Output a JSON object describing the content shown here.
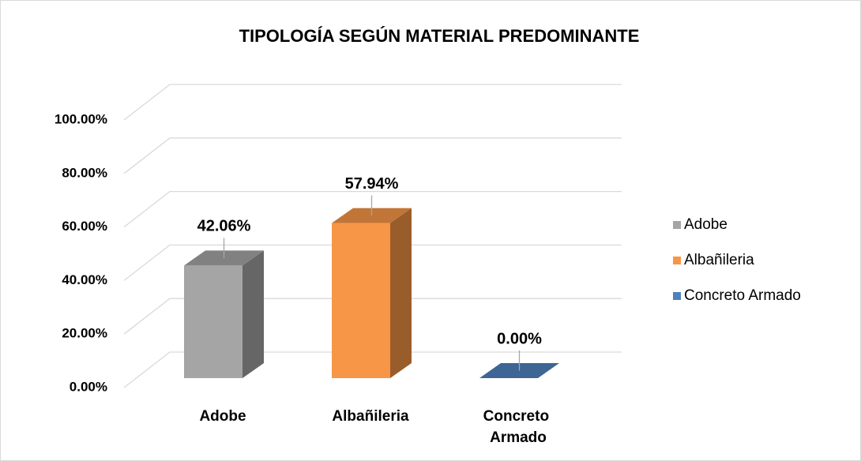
{
  "chart_data": {
    "type": "bar3d",
    "title": "TIPOLOGÍA SEGÚN MATERIAL PREDOMINANTE",
    "categories": [
      "Adobe",
      "Albañileria",
      "Concreto Armado"
    ],
    "values": [
      42.06,
      57.94,
      0
    ],
    "value_labels": [
      "42.06%",
      "57.94%",
      "0.00%"
    ],
    "colors": [
      "#a5a5a5",
      "#f79646",
      "#4f81bd"
    ],
    "ylim": [
      0,
      100
    ],
    "yticks": [
      {
        "value": 0,
        "label": "0.00%"
      },
      {
        "value": 20,
        "label": "20.00%"
      },
      {
        "value": 40,
        "label": "40.00%"
      },
      {
        "value": 60,
        "label": "60.00%"
      },
      {
        "value": 80,
        "label": "80.00%"
      },
      {
        "value": 100,
        "label": "100.00%"
      }
    ],
    "grid": true,
    "legend": "right"
  }
}
